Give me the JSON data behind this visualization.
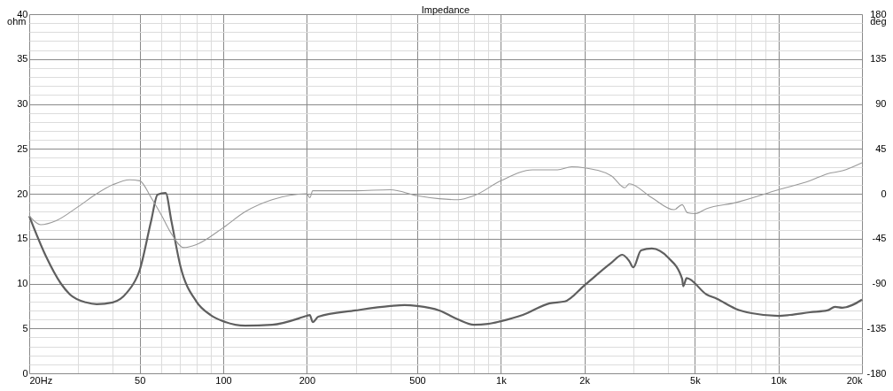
{
  "chart_data": {
    "type": "line",
    "title": "Impedance",
    "ylabel": "ohm",
    "y2label": "deg",
    "log": "x",
    "grid": true,
    "marker": "none",
    "line_style": "solid",
    "xlim": [
      20,
      20000
    ],
    "ylim": [
      0,
      40
    ],
    "y2lim": [
      -180,
      180
    ],
    "xticks": [
      {
        "value": 20,
        "label": "20Hz"
      },
      {
        "value": 30,
        "label": null
      },
      {
        "value": 40,
        "label": null
      },
      50,
      {
        "value": 60,
        "label": null
      },
      {
        "value": 70,
        "label": null
      },
      {
        "value": 80,
        "label": null
      },
      {
        "value": 90,
        "label": null
      },
      100,
      200,
      {
        "value": 300,
        "label": null
      },
      {
        "value": 400,
        "label": null
      },
      500,
      {
        "value": 600,
        "label": null
      },
      {
        "value": 700,
        "label": null
      },
      {
        "value": 800,
        "label": null
      },
      {
        "value": 900,
        "label": null
      },
      {
        "value": 1000,
        "label": "1k"
      },
      {
        "value": 2000,
        "label": "2k"
      },
      {
        "value": 3000,
        "label": null
      },
      {
        "value": 4000,
        "label": null
      },
      {
        "value": 5000,
        "label": "5k"
      },
      {
        "value": 6000,
        "label": null
      },
      {
        "value": 7000,
        "label": null
      },
      {
        "value": 8000,
        "label": null
      },
      {
        "value": 9000,
        "label": null
      },
      {
        "value": 10000,
        "label": "10k"
      },
      {
        "value": 20000,
        "label": "20k"
      }
    ],
    "yticks": [
      0,
      {
        "value": 1,
        "label": null
      },
      {
        "value": 2,
        "label": null
      },
      {
        "value": 3,
        "label": null
      },
      {
        "value": 4,
        "label": null
      },
      5,
      {
        "value": 6,
        "label": null
      },
      {
        "value": 7,
        "label": null
      },
      {
        "value": 8,
        "label": null
      },
      {
        "value": 9,
        "label": null
      },
      10,
      {
        "value": 11,
        "label": null
      },
      {
        "value": 12,
        "label": null
      },
      {
        "value": 13,
        "label": null
      },
      {
        "value": 14,
        "label": null
      },
      15,
      {
        "value": 16,
        "label": null
      },
      {
        "value": 17,
        "label": null
      },
      {
        "value": 18,
        "label": null
      },
      {
        "value": 19,
        "label": null
      },
      20,
      {
        "value": 21,
        "label": null
      },
      {
        "value": 22,
        "label": null
      },
      {
        "value": 23,
        "label": null
      },
      {
        "value": 24,
        "label": null
      },
      25,
      {
        "value": 26,
        "label": null
      },
      {
        "value": 27,
        "label": null
      },
      {
        "value": 28,
        "label": null
      },
      {
        "value": 29,
        "label": null
      },
      30,
      {
        "value": 31,
        "label": null
      },
      {
        "value": 32,
        "label": null
      },
      {
        "value": 33,
        "label": null
      },
      {
        "value": 34,
        "label": null
      },
      35,
      {
        "value": 36,
        "label": null
      },
      {
        "value": 37,
        "label": null
      },
      {
        "value": 38,
        "label": null
      },
      {
        "value": 39,
        "label": null
      },
      40
    ],
    "y2ticks": [
      -180,
      -135,
      -90,
      -45,
      0,
      45,
      90,
      135,
      180
    ],
    "series": [
      {
        "color": "#5f5f5f",
        "x": [
          20,
          23,
          26,
          28,
          32,
          35,
          40,
          45,
          50,
          55,
          58,
          62,
          65,
          70,
          80,
          90,
          100,
          120,
          150,
          200,
          205,
          210,
          220,
          300,
          400,
          450,
          500,
          600,
          700,
          800,
          900,
          1000,
          1200,
          1500,
          1700,
          2000,
          2500,
          2740,
          2900,
          3000,
          3200,
          3500,
          4000,
          4500,
          4540,
          4670,
          5500,
          6000,
          7000,
          8000,
          10000,
          11000,
          13000,
          15000,
          16000,
          17000,
          20000
        ],
        "values": [
          17.5,
          13,
          10,
          8.8,
          7.9,
          7.7,
          7.9,
          9,
          11.5,
          17,
          19.9,
          20.1,
          17,
          12,
          8,
          6.5,
          5.8,
          5.3,
          5.4,
          6.4,
          6.5,
          5.7,
          6.3,
          7,
          7.5,
          7.6,
          7.5,
          7,
          6,
          5.4,
          5.5,
          5.8,
          6.5,
          7.8,
          8,
          9.8,
          12.3,
          13.2,
          12.5,
          11.8,
          13.7,
          13.9,
          12.9,
          10.5,
          9.7,
          10.6,
          8.8,
          8.3,
          7.2,
          6.7,
          6.4,
          6.5,
          6.8,
          7,
          7.4,
          7.3,
          8.2
        ]
      },
      {
        "color": "#9a9a9a",
        "axis": "y2",
        "x": [
          20,
          22,
          25,
          30,
          35,
          40,
          46,
          50,
          55,
          60,
          65,
          72,
          80,
          100,
          120,
          150,
          200,
          205,
          210,
          300,
          400,
          500,
          600,
          700,
          800,
          1000,
          1300,
          1600,
          1800,
          2000,
          2500,
          2800,
          2900,
          3500,
          4200,
          4500,
          4700,
          5000,
          5500,
          7000,
          10000,
          13000,
          15000,
          17000,
          20000
        ],
        "values": [
          -22,
          -31,
          -27,
          -13,
          0,
          9,
          14,
          13,
          -4,
          -22,
          -40,
          -54,
          -51,
          -34,
          -18,
          -6,
          0,
          -4,
          3,
          3,
          4,
          -2,
          -5,
          -6,
          -2,
          13,
          24,
          24,
          27,
          26,
          18,
          6,
          10,
          -4,
          -16,
          -11,
          -19,
          -20,
          -15,
          -9,
          4,
          13,
          20,
          23,
          31
        ]
      }
    ]
  }
}
